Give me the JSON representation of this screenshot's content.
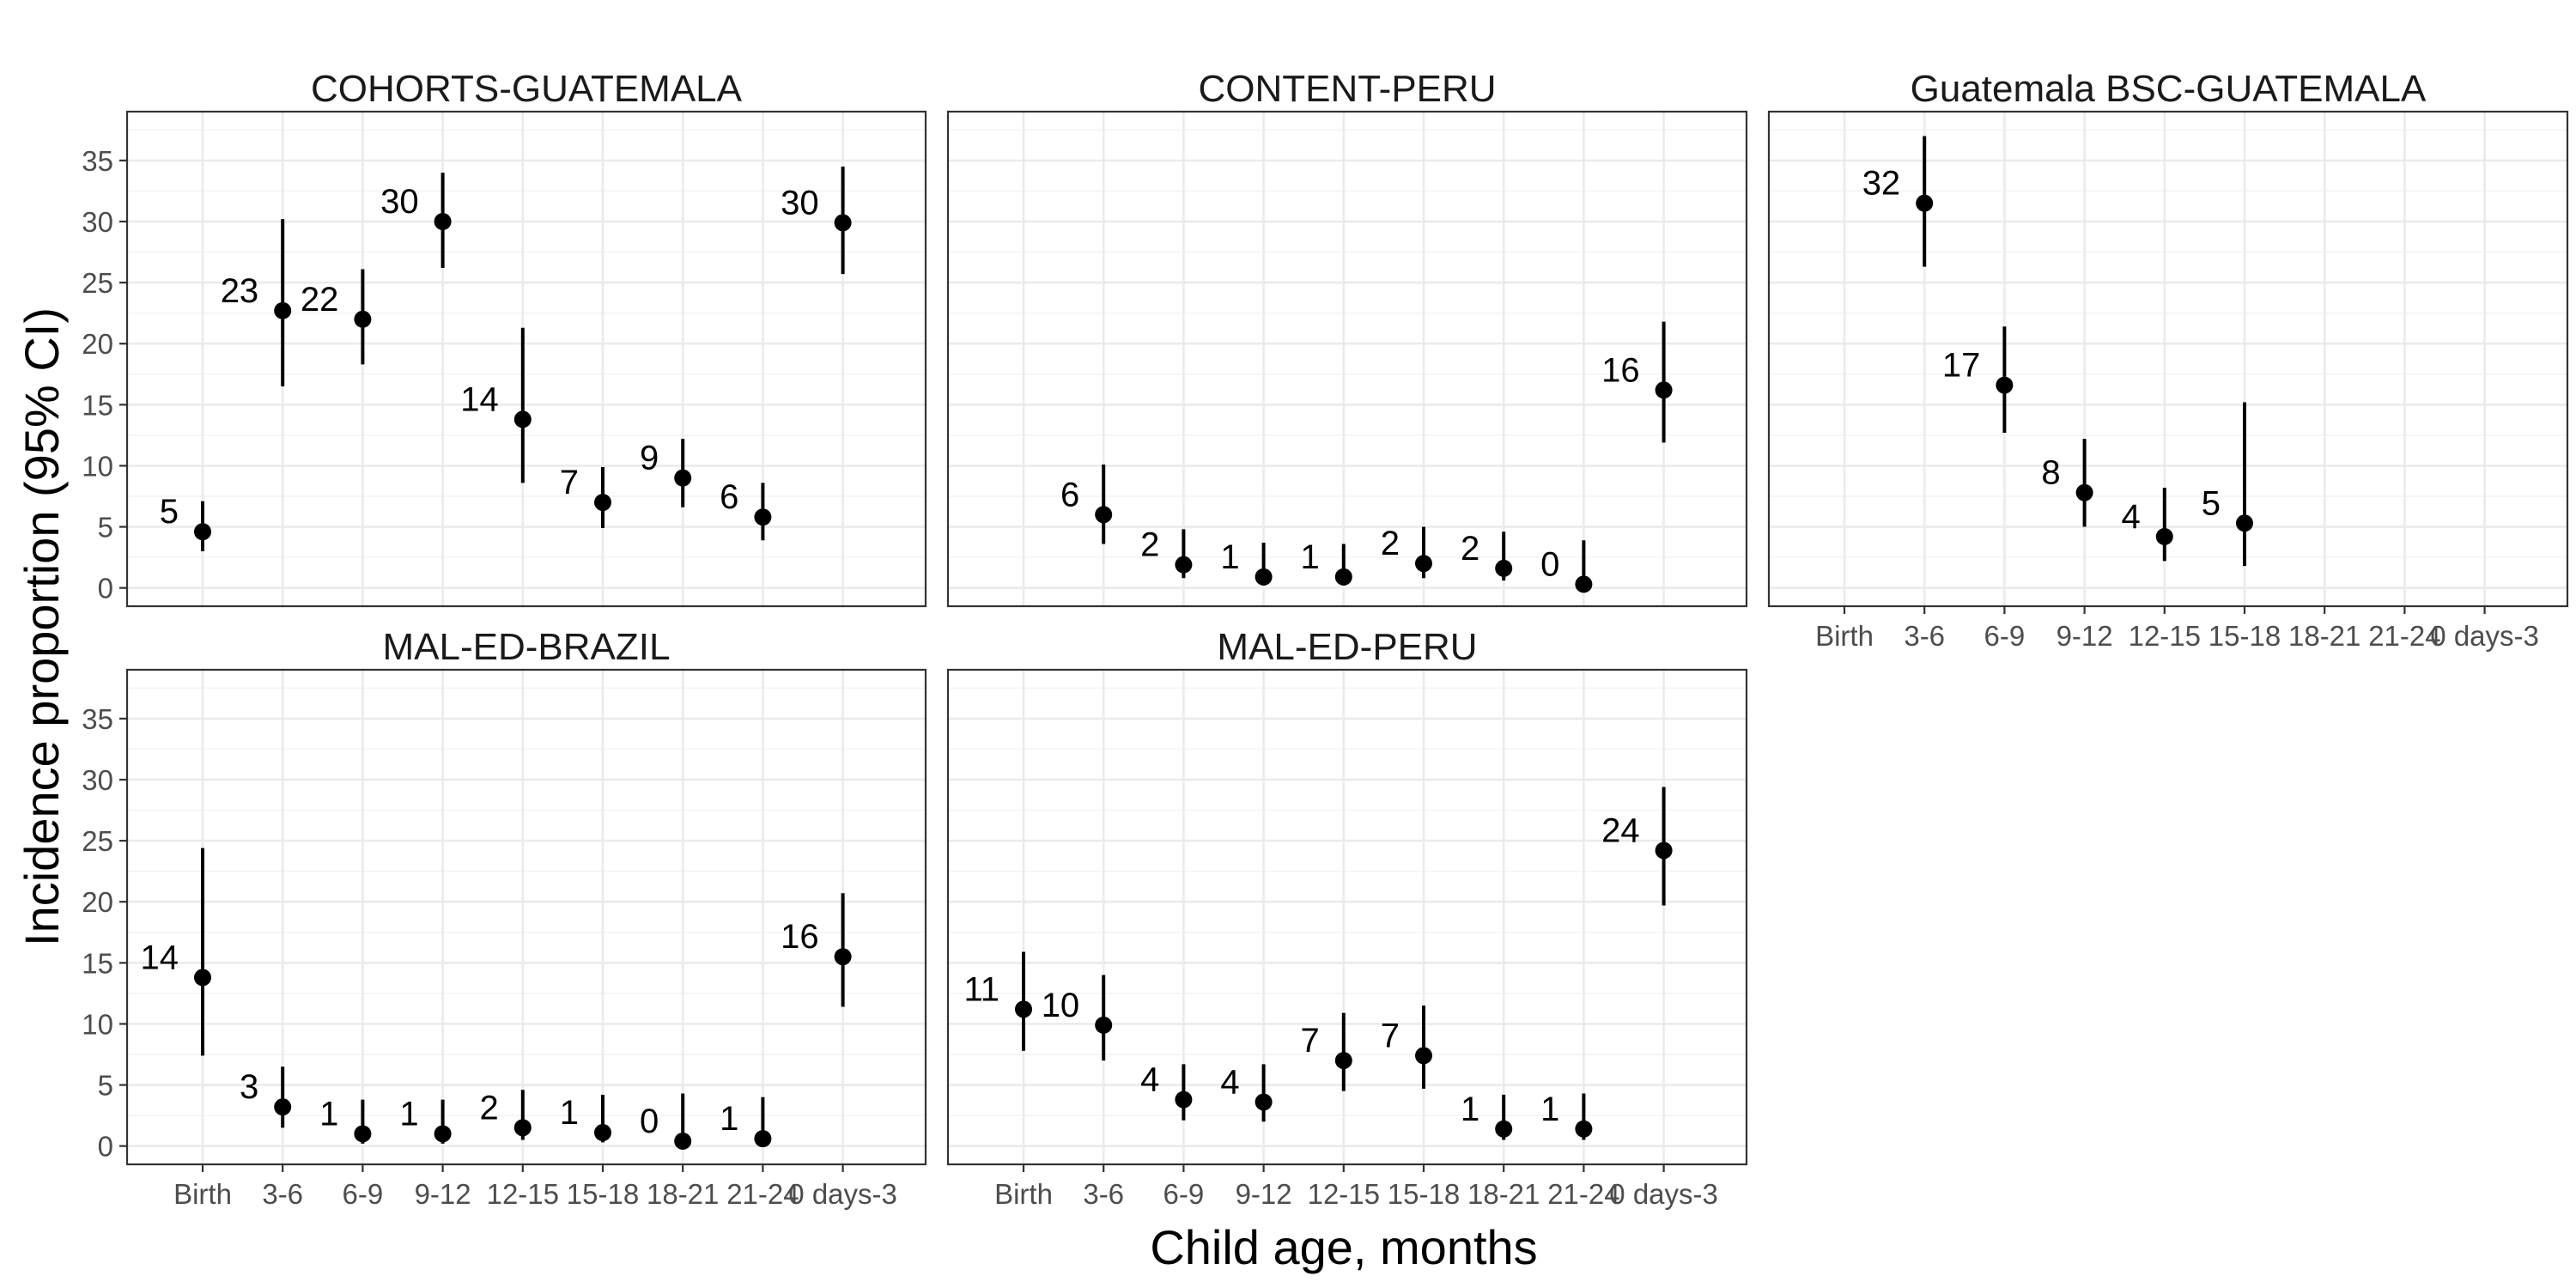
{
  "chart_data": {
    "type": "scatter",
    "xlabel": "Child age, months",
    "ylabel": "Incidence proportion (95% CI)",
    "categories": [
      "Birth",
      "3-6",
      "6-9",
      "9-12",
      "12-15",
      "15-18",
      "18-21",
      "21-24",
      "0 days-3"
    ],
    "y_ticks": [
      0,
      5,
      10,
      15,
      20,
      25,
      30,
      35
    ],
    "ylim": [
      -1.5,
      39
    ],
    "grid": true,
    "point_color": "#000000",
    "panels": [
      {
        "title": "COHORTS-GUATEMALA",
        "points": [
          {
            "x": "Birth",
            "y": 4.6,
            "lo": 3.0,
            "hi": 7.1,
            "label": "5"
          },
          {
            "x": "3-6",
            "y": 22.7,
            "lo": 16.5,
            "hi": 30.2,
            "label": "23"
          },
          {
            "x": "6-9",
            "y": 22.0,
            "lo": 18.3,
            "hi": 26.1,
            "label": "22"
          },
          {
            "x": "9-12",
            "y": 30.0,
            "lo": 26.2,
            "hi": 34.0,
            "label": "30"
          },
          {
            "x": "12-15",
            "y": 13.8,
            "lo": 8.6,
            "hi": 21.3,
            "label": "14"
          },
          {
            "x": "15-18",
            "y": 7.0,
            "lo": 4.9,
            "hi": 9.9,
            "label": "7"
          },
          {
            "x": "18-21",
            "y": 9.0,
            "lo": 6.6,
            "hi": 12.2,
            "label": "9"
          },
          {
            "x": "21-24",
            "y": 5.8,
            "lo": 3.9,
            "hi": 8.6,
            "label": "6"
          },
          {
            "x": "0 days-3",
            "y": 29.9,
            "lo": 25.7,
            "hi": 34.5,
            "label": "30"
          }
        ]
      },
      {
        "title": "CONTENT-PERU",
        "points": [
          {
            "x": "3-6",
            "y": 6.0,
            "lo": 3.6,
            "hi": 10.1,
            "label": "6"
          },
          {
            "x": "6-9",
            "y": 1.9,
            "lo": 0.8,
            "hi": 4.8,
            "label": "2"
          },
          {
            "x": "9-12",
            "y": 0.9,
            "lo": 0.2,
            "hi": 3.7,
            "label": "1"
          },
          {
            "x": "12-15",
            "y": 0.9,
            "lo": 0.2,
            "hi": 3.6,
            "label": "1"
          },
          {
            "x": "15-18",
            "y": 2.0,
            "lo": 0.8,
            "hi": 5.0,
            "label": "2"
          },
          {
            "x": "18-21",
            "y": 1.6,
            "lo": 0.6,
            "hi": 4.6,
            "label": "2"
          },
          {
            "x": "21-24",
            "y": 0.3,
            "lo": 0.0,
            "hi": 3.9,
            "label": "0"
          },
          {
            "x": "0 days-3",
            "y": 16.2,
            "lo": 11.9,
            "hi": 21.8,
            "label": "16"
          }
        ]
      },
      {
        "title": "Guatemala BSC-GUATEMALA",
        "points": [
          {
            "x": "3-6",
            "y": 31.5,
            "lo": 26.3,
            "hi": 37.0,
            "label": "32"
          },
          {
            "x": "6-9",
            "y": 16.6,
            "lo": 12.7,
            "hi": 21.4,
            "label": "17"
          },
          {
            "x": "9-12",
            "y": 7.8,
            "lo": 5.0,
            "hi": 12.2,
            "label": "8"
          },
          {
            "x": "12-15",
            "y": 4.2,
            "lo": 2.2,
            "hi": 8.2,
            "label": "4"
          },
          {
            "x": "15-18",
            "y": 5.3,
            "lo": 1.8,
            "hi": 15.2,
            "label": "5"
          }
        ]
      },
      {
        "title": "MAL-ED-BRAZIL",
        "points": [
          {
            "x": "Birth",
            "y": 13.8,
            "lo": 7.4,
            "hi": 24.4,
            "label": "14"
          },
          {
            "x": "3-6",
            "y": 3.2,
            "lo": 1.5,
            "hi": 6.5,
            "label": "3"
          },
          {
            "x": "6-9",
            "y": 1.0,
            "lo": 0.2,
            "hi": 3.8,
            "label": "1"
          },
          {
            "x": "9-12",
            "y": 1.0,
            "lo": 0.2,
            "hi": 3.8,
            "label": "1"
          },
          {
            "x": "12-15",
            "y": 1.5,
            "lo": 0.5,
            "hi": 4.6,
            "label": "2"
          },
          {
            "x": "15-18",
            "y": 1.1,
            "lo": 0.3,
            "hi": 4.2,
            "label": "1"
          },
          {
            "x": "18-21",
            "y": 0.4,
            "lo": 0.0,
            "hi": 4.3,
            "label": "0"
          },
          {
            "x": "21-24",
            "y": 0.6,
            "lo": 0.0,
            "hi": 4.0,
            "label": "1"
          },
          {
            "x": "0 days-3",
            "y": 15.5,
            "lo": 11.4,
            "hi": 20.7,
            "label": "16"
          }
        ]
      },
      {
        "title": "MAL-ED-PERU",
        "points": [
          {
            "x": "Birth",
            "y": 11.2,
            "lo": 7.8,
            "hi": 15.9,
            "label": "11"
          },
          {
            "x": "3-6",
            "y": 9.9,
            "lo": 7.0,
            "hi": 14.0,
            "label": "10"
          },
          {
            "x": "6-9",
            "y": 3.8,
            "lo": 2.1,
            "hi": 6.7,
            "label": "4"
          },
          {
            "x": "9-12",
            "y": 3.6,
            "lo": 2.0,
            "hi": 6.7,
            "label": "4"
          },
          {
            "x": "12-15",
            "y": 7.0,
            "lo": 4.5,
            "hi": 10.9,
            "label": "7"
          },
          {
            "x": "15-18",
            "y": 7.4,
            "lo": 4.7,
            "hi": 11.5,
            "label": "7"
          },
          {
            "x": "18-21",
            "y": 1.4,
            "lo": 0.5,
            "hi": 4.2,
            "label": "1"
          },
          {
            "x": "21-24",
            "y": 1.4,
            "lo": 0.5,
            "hi": 4.3,
            "label": "1"
          },
          {
            "x": "0 days-3",
            "y": 24.2,
            "lo": 19.7,
            "hi": 29.4,
            "label": "24"
          }
        ]
      }
    ]
  }
}
